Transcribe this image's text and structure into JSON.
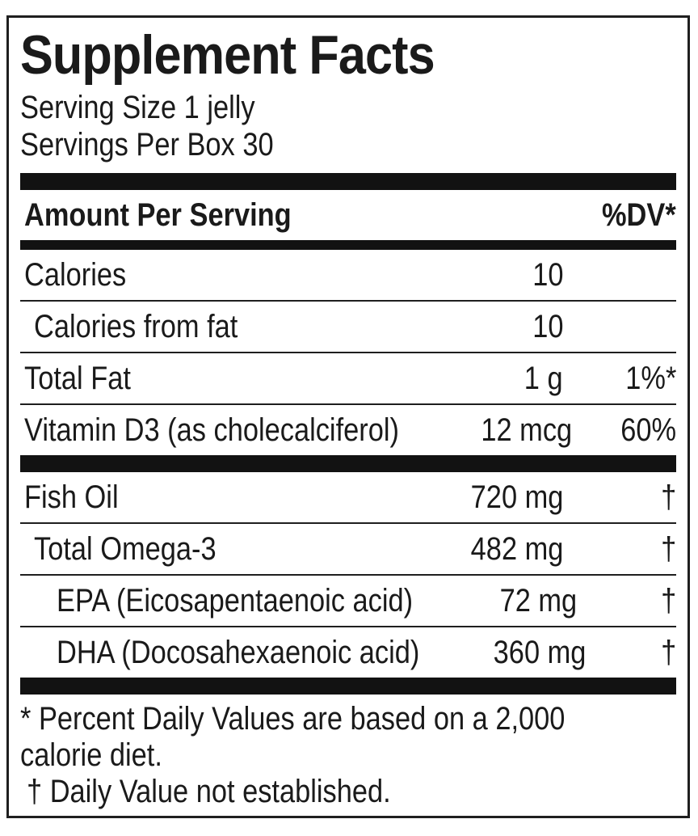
{
  "label": {
    "title": "Supplement Facts",
    "serving": {
      "size": "Serving Size 1 jelly",
      "per_box": "Servings Per Box 30"
    },
    "header": {
      "amount_per_serving": "Amount Per Serving",
      "dv": "%DV*"
    },
    "rows": [
      {
        "name": "Calories",
        "amount": "10",
        "dv": ""
      },
      {
        "name": "Calories from fat",
        "amount": "10",
        "dv": ""
      },
      {
        "name": "Total Fat",
        "amount": "1 g",
        "dv": "1%*"
      },
      {
        "name": "Vitamin D3 (as cholecalciferol)",
        "amount": "12 mcg",
        "dv": "60%"
      },
      {
        "name": "Fish Oil",
        "amount": "720 mg",
        "dv": "†"
      },
      {
        "name": "Total Omega-3",
        "amount": "482 mg",
        "dv": "†"
      },
      {
        "name": "EPA (Eicosapentaenoic acid)",
        "amount": "72 mg",
        "dv": "†"
      },
      {
        "name": "DHA (Docosahexaenoic acid)",
        "amount": "360 mg",
        "dv": "†"
      }
    ],
    "footnotes": {
      "line1": "* Percent Daily Values are based on a 2,000",
      "line2": "calorie diet.",
      "line3": "† Daily Value not established."
    },
    "colors": {
      "ink": "#1a1a1a",
      "bar": "#121212",
      "background": "#ffffff"
    }
  }
}
